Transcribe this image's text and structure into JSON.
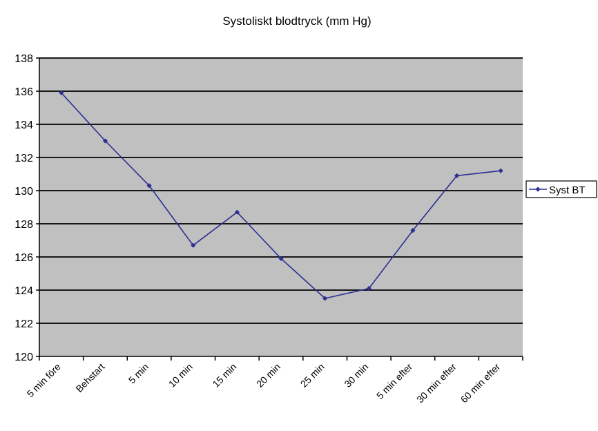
{
  "chart_data": {
    "type": "line",
    "title": "Systoliskt blodtryck (mm Hg)",
    "xlabel": "",
    "ylabel": "",
    "categories": [
      "5 min före",
      "Behstart",
      "5 min",
      "10 min",
      "15 min",
      "20 min",
      "25 min",
      "30 min",
      "5 min efter",
      "30 min efter",
      "60 min efter"
    ],
    "series": [
      {
        "name": "Syst BT",
        "values": [
          135.9,
          133.0,
          130.3,
          126.7,
          128.7,
          125.9,
          123.5,
          124.1,
          127.6,
          130.9,
          131.2
        ]
      }
    ],
    "ylim": [
      120,
      138
    ],
    "yticks": [
      120,
      122,
      124,
      126,
      128,
      130,
      132,
      134,
      136,
      138
    ],
    "grid": true,
    "legend_position": "right",
    "colors": {
      "plot_background": "#c0c0c0",
      "line": "#2b2f91",
      "gridline": "#000000",
      "axis": "#000000"
    }
  }
}
